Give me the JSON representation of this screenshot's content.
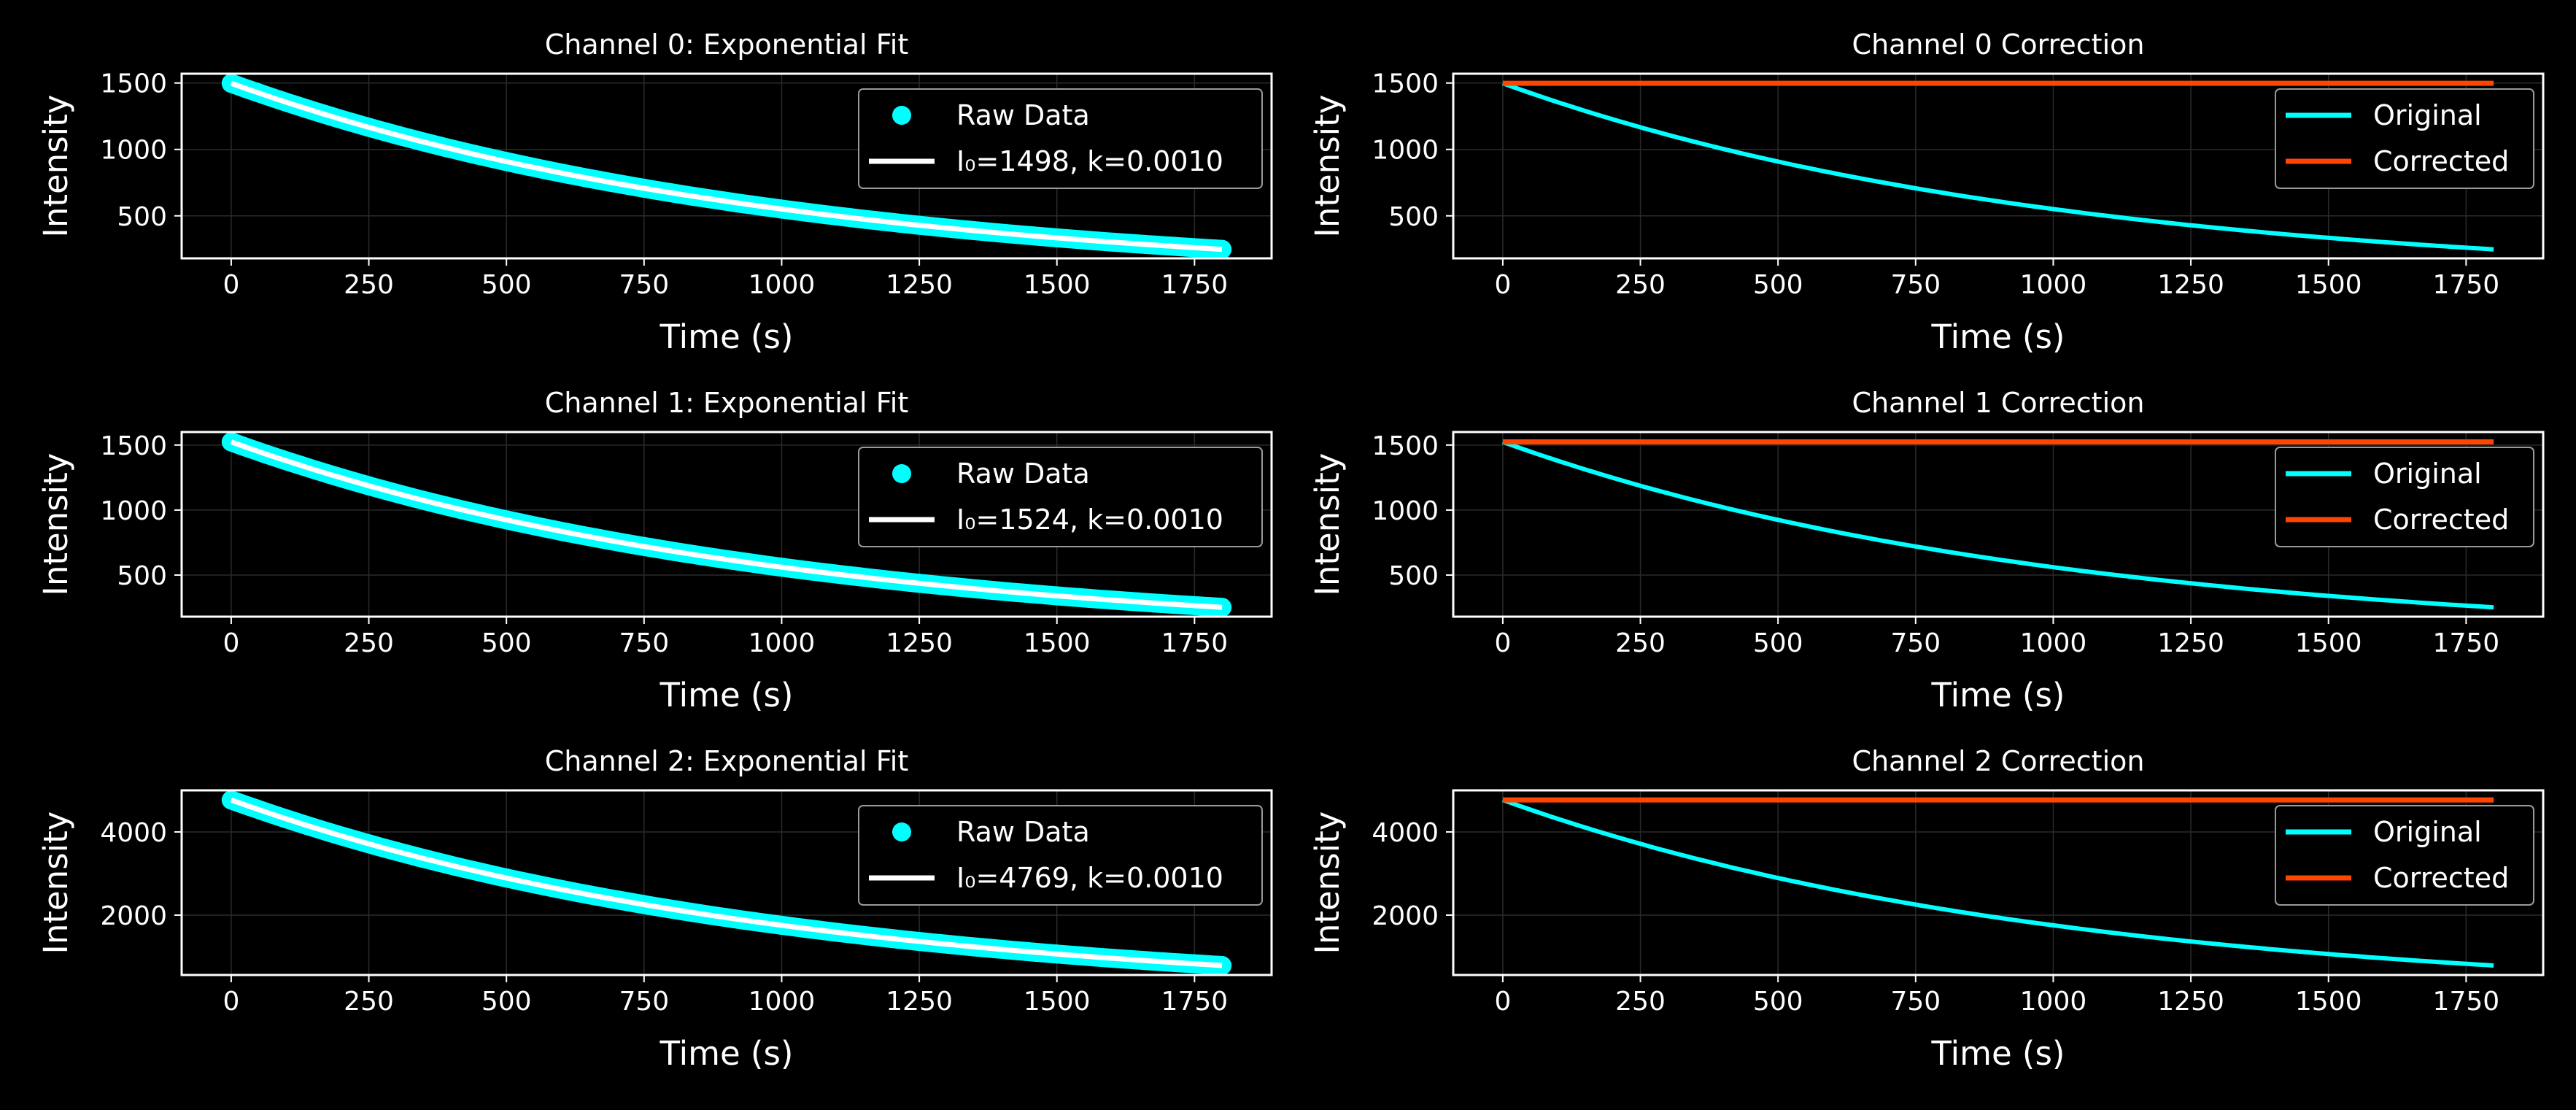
{
  "chart_data": [
    {
      "type": "scatter",
      "title": "Channel 0: Exponential Fit",
      "xlabel": "Time (s)",
      "ylabel": "Intensity",
      "xlim": [
        -90,
        1890
      ],
      "ylim": [
        180,
        1570
      ],
      "xticks": [
        0,
        250,
        500,
        750,
        1000,
        1250,
        1500,
        1750
      ],
      "yticks": [
        500,
        1000,
        1500
      ],
      "grid": true,
      "legend": "upper right",
      "series": [
        {
          "name": "Raw Data",
          "kind": "scatter",
          "color": "#00ffff",
          "x": [
            0,
            250,
            500,
            750,
            1000,
            1250,
            1500,
            1800
          ],
          "y": [
            1498,
            1167,
            909,
            708,
            551,
            429,
            334,
            248
          ]
        },
        {
          "name": "I₀=1498, k=0.0010",
          "kind": "fit",
          "color": "#ffffff",
          "I0": 1498,
          "k": 0.001
        }
      ]
    },
    {
      "type": "line",
      "title": "Channel 0 Correction",
      "xlabel": "Time (s)",
      "ylabel": "Intensity",
      "xlim": [
        -90,
        1890
      ],
      "ylim": [
        180,
        1570
      ],
      "xticks": [
        0,
        250,
        500,
        750,
        1000,
        1250,
        1500,
        1750
      ],
      "yticks": [
        500,
        1000,
        1500
      ],
      "grid": true,
      "legend": "upper right",
      "series": [
        {
          "name": "Original",
          "kind": "decay",
          "color": "#00ffff",
          "I0": 1498,
          "k": 0.001
        },
        {
          "name": "Corrected",
          "kind": "flat",
          "color": "#ff4500",
          "value": 1498
        }
      ]
    },
    {
      "type": "scatter",
      "title": "Channel 1: Exponential Fit",
      "xlabel": "Time (s)",
      "ylabel": "Intensity",
      "xlim": [
        -90,
        1890
      ],
      "ylim": [
        180,
        1600
      ],
      "xticks": [
        0,
        250,
        500,
        750,
        1000,
        1250,
        1500,
        1750
      ],
      "yticks": [
        500,
        1000,
        1500
      ],
      "grid": true,
      "legend": "upper right",
      "series": [
        {
          "name": "Raw Data",
          "kind": "scatter",
          "color": "#00ffff",
          "x": [
            0,
            250,
            500,
            750,
            1000,
            1250,
            1500,
            1800
          ],
          "y": [
            1524,
            1187,
            924,
            720,
            561,
            437,
            340,
            252
          ]
        },
        {
          "name": "I₀=1524, k=0.0010",
          "kind": "fit",
          "color": "#ffffff",
          "I0": 1524,
          "k": 0.001
        }
      ]
    },
    {
      "type": "line",
      "title": "Channel 1 Correction",
      "xlabel": "Time (s)",
      "ylabel": "Intensity",
      "xlim": [
        -90,
        1890
      ],
      "ylim": [
        180,
        1600
      ],
      "xticks": [
        0,
        250,
        500,
        750,
        1000,
        1250,
        1500,
        1750
      ],
      "yticks": [
        500,
        1000,
        1500
      ],
      "grid": true,
      "legend": "upper right",
      "series": [
        {
          "name": "Original",
          "kind": "decay",
          "color": "#00ffff",
          "I0": 1524,
          "k": 0.001
        },
        {
          "name": "Corrected",
          "kind": "flat",
          "color": "#ff4500",
          "value": 1524
        }
      ]
    },
    {
      "type": "scatter",
      "title": "Channel 2: Exponential Fit",
      "xlabel": "Time (s)",
      "ylabel": "Intensity",
      "xlim": [
        -90,
        1890
      ],
      "ylim": [
        560,
        5000
      ],
      "xticks": [
        0,
        250,
        500,
        750,
        1000,
        1250,
        1500,
        1750
      ],
      "yticks": [
        2000,
        4000
      ],
      "grid": true,
      "legend": "upper right",
      "series": [
        {
          "name": "Raw Data",
          "kind": "scatter",
          "color": "#00ffff",
          "x": [
            0,
            250,
            500,
            750,
            1000,
            1250,
            1500,
            1800
          ],
          "y": [
            4769,
            3714,
            2893,
            2253,
            1754,
            1366,
            1064,
            788
          ]
        },
        {
          "name": "I₀=4769, k=0.0010",
          "kind": "fit",
          "color": "#ffffff",
          "I0": 4769,
          "k": 0.001
        }
      ]
    },
    {
      "type": "line",
      "title": "Channel 2 Correction",
      "xlabel": "Time (s)",
      "ylabel": "Intensity",
      "xlim": [
        -90,
        1890
      ],
      "ylim": [
        560,
        5000
      ],
      "xticks": [
        0,
        250,
        500,
        750,
        1000,
        1250,
        1500,
        1750
      ],
      "yticks": [
        2000,
        4000
      ],
      "grid": true,
      "legend": "upper right",
      "series": [
        {
          "name": "Original",
          "kind": "decay",
          "color": "#00ffff",
          "I0": 4769,
          "k": 0.001
        },
        {
          "name": "Corrected",
          "kind": "flat",
          "color": "#ff4500",
          "value": 4769
        }
      ]
    }
  ]
}
